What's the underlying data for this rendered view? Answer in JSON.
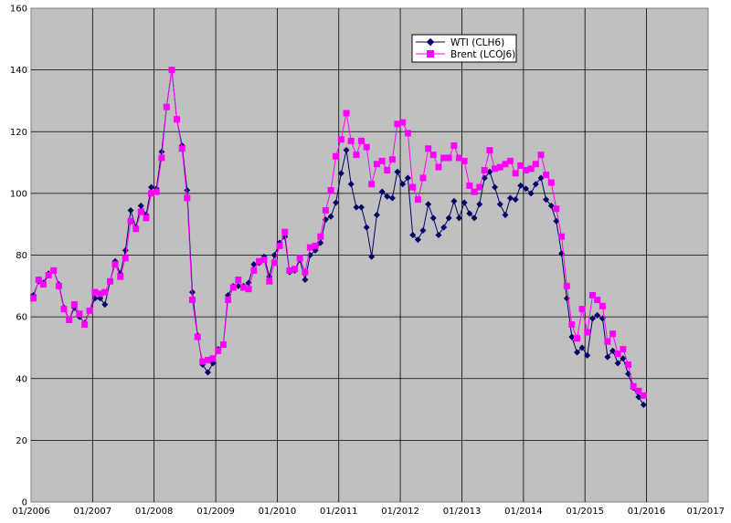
{
  "chart_data": {
    "type": "line",
    "title": "",
    "xlabel": "",
    "ylabel": "",
    "ylim": [
      0,
      160
    ],
    "y_ticks": [
      0,
      20,
      40,
      60,
      80,
      100,
      120,
      140,
      160
    ],
    "y_tick_labels": [
      "0",
      "20",
      "40",
      "60",
      "80",
      "100",
      "120",
      "140",
      "160"
    ],
    "x_range": [
      "2006-01-01",
      "2017-01-01"
    ],
    "x_ticks": [
      "2006-01-01",
      "2007-01-01",
      "2008-01-01",
      "2009-01-01",
      "2010-01-01",
      "2011-01-01",
      "2012-01-01",
      "2013-01-01",
      "2014-01-01",
      "2015-01-01",
      "2016-01-01",
      "2017-01-01"
    ],
    "x_tick_labels": [
      "01/2006",
      "01/2007",
      "01/2008",
      "01/2009",
      "01/2010",
      "01/2011",
      "01/2012",
      "01/2013",
      "01/2014",
      "01/2015",
      "01/2016",
      "01/2017"
    ],
    "grid": true,
    "legend_position": "top-center",
    "plot_background": "#c0c0c0",
    "series": [
      {
        "name": "WTI (CLH6)",
        "color": "#000066",
        "marker": "diamond",
        "points": [
          [
            "2006-01-15",
            67
          ],
          [
            "2006-02-15",
            71.5
          ],
          [
            "2006-03-15",
            71
          ],
          [
            "2006-04-15",
            74
          ],
          [
            "2006-05-15",
            75
          ],
          [
            "2006-06-15",
            70.5
          ],
          [
            "2006-07-15",
            63
          ],
          [
            "2006-08-15",
            59
          ],
          [
            "2006-09-15",
            63
          ],
          [
            "2006-10-15",
            60
          ],
          [
            "2006-11-15",
            58
          ],
          [
            "2006-12-15",
            62
          ],
          [
            "2007-01-15",
            66
          ],
          [
            "2007-02-15",
            66
          ],
          [
            "2007-03-15",
            64
          ],
          [
            "2007-04-15",
            71.5
          ],
          [
            "2007-05-15",
            78
          ],
          [
            "2007-06-15",
            74
          ],
          [
            "2007-07-15",
            81.5
          ],
          [
            "2007-08-15",
            94.5
          ],
          [
            "2007-09-15",
            89
          ],
          [
            "2007-10-15",
            96
          ],
          [
            "2007-11-15",
            93
          ],
          [
            "2007-12-15",
            102
          ],
          [
            "2008-01-15",
            101.5
          ],
          [
            "2008-02-15",
            113.5
          ],
          [
            "2008-03-15",
            128
          ],
          [
            "2008-04-15",
            140
          ],
          [
            "2008-05-15",
            124
          ],
          [
            "2008-06-15",
            115.5
          ],
          [
            "2008-07-15",
            101
          ],
          [
            "2008-08-15",
            68
          ],
          [
            "2008-09-15",
            54
          ],
          [
            "2008-10-15",
            44.5
          ],
          [
            "2008-11-15",
            42
          ],
          [
            "2008-12-15",
            45
          ],
          [
            "2009-01-15",
            49.5
          ],
          [
            "2009-02-15",
            51
          ],
          [
            "2009-03-15",
            67
          ],
          [
            "2009-04-15",
            70
          ],
          [
            "2009-05-15",
            70
          ],
          [
            "2009-06-15",
            70
          ],
          [
            "2009-07-15",
            71
          ],
          [
            "2009-08-15",
            77
          ],
          [
            "2009-09-15",
            77.5
          ],
          [
            "2009-10-15",
            79.5
          ],
          [
            "2009-11-15",
            73
          ],
          [
            "2009-12-15",
            80
          ],
          [
            "2010-01-15",
            84
          ],
          [
            "2010-02-15",
            86
          ],
          [
            "2010-03-15",
            74.5
          ],
          [
            "2010-04-15",
            75
          ],
          [
            "2010-05-15",
            78.5
          ],
          [
            "2010-06-15",
            72
          ],
          [
            "2010-07-15",
            80
          ],
          [
            "2010-08-15",
            81.5
          ],
          [
            "2010-09-15",
            84
          ],
          [
            "2010-10-15",
            91.5
          ],
          [
            "2010-11-15",
            92.5
          ],
          [
            "2010-12-15",
            97
          ],
          [
            "2011-01-15",
            106.5
          ],
          [
            "2011-02-15",
            114
          ],
          [
            "2011-03-15",
            103
          ],
          [
            "2011-04-15",
            95.5
          ],
          [
            "2011-05-15",
            95.5
          ],
          [
            "2011-06-15",
            89
          ],
          [
            "2011-07-15",
            79.5
          ],
          [
            "2011-08-15",
            93
          ],
          [
            "2011-09-15",
            100.5
          ],
          [
            "2011-10-15",
            99
          ],
          [
            "2011-11-15",
            98.5
          ],
          [
            "2011-12-15",
            107
          ],
          [
            "2012-01-15",
            103
          ],
          [
            "2012-02-15",
            105
          ],
          [
            "2012-03-15",
            86.5
          ],
          [
            "2012-04-15",
            85
          ],
          [
            "2012-05-15",
            88
          ],
          [
            "2012-06-15",
            96.5
          ],
          [
            "2012-07-15",
            92
          ],
          [
            "2012-08-15",
            86.5
          ],
          [
            "2012-09-15",
            89
          ],
          [
            "2012-10-15",
            92
          ],
          [
            "2012-11-15",
            97.5
          ],
          [
            "2012-12-15",
            92
          ],
          [
            "2013-01-15",
            97
          ],
          [
            "2013-02-15",
            93.5
          ],
          [
            "2013-03-15",
            92
          ],
          [
            "2013-04-15",
            96.5
          ],
          [
            "2013-05-15",
            105
          ],
          [
            "2013-06-15",
            107
          ],
          [
            "2013-07-15",
            102
          ],
          [
            "2013-08-15",
            96.5
          ],
          [
            "2013-09-15",
            93
          ],
          [
            "2013-10-15",
            98.5
          ],
          [
            "2013-11-15",
            98
          ],
          [
            "2013-12-15",
            102.5
          ],
          [
            "2014-01-15",
            101.5
          ],
          [
            "2014-02-15",
            100
          ],
          [
            "2014-03-15",
            103
          ],
          [
            "2014-04-15",
            105
          ],
          [
            "2014-05-15",
            98
          ],
          [
            "2014-06-15",
            96
          ],
          [
            "2014-07-15",
            91
          ],
          [
            "2014-08-15",
            80.5
          ],
          [
            "2014-09-15",
            66
          ],
          [
            "2014-10-15",
            53.5
          ],
          [
            "2014-11-15",
            48.5
          ],
          [
            "2014-12-15",
            50
          ],
          [
            "2015-01-15",
            47.5
          ],
          [
            "2015-02-15",
            59.5
          ],
          [
            "2015-03-15",
            60.5
          ],
          [
            "2015-04-15",
            59.5
          ],
          [
            "2015-05-15",
            47
          ],
          [
            "2015-06-15",
            49
          ],
          [
            "2015-07-15",
            45
          ],
          [
            "2015-08-15",
            46.5
          ],
          [
            "2015-09-15",
            41.5
          ],
          [
            "2015-10-15",
            37
          ],
          [
            "2015-11-15",
            34
          ],
          [
            "2015-12-15",
            31.5
          ]
        ]
      },
      {
        "name": "Brent (LCOJ6)",
        "color": "#ff00ff",
        "marker": "square",
        "points": [
          [
            "2006-01-15",
            66
          ],
          [
            "2006-02-15",
            72
          ],
          [
            "2006-03-15",
            70.5
          ],
          [
            "2006-04-15",
            73.5
          ],
          [
            "2006-05-15",
            75
          ],
          [
            "2006-06-15",
            70
          ],
          [
            "2006-07-15",
            62.5
          ],
          [
            "2006-08-15",
            59
          ],
          [
            "2006-09-15",
            64
          ],
          [
            "2006-10-15",
            61
          ],
          [
            "2006-11-15",
            57.5
          ],
          [
            "2006-12-15",
            62
          ],
          [
            "2007-01-15",
            68
          ],
          [
            "2007-02-15",
            67.5
          ],
          [
            "2007-03-15",
            68
          ],
          [
            "2007-04-15",
            71.5
          ],
          [
            "2007-05-15",
            77
          ],
          [
            "2007-06-15",
            73
          ],
          [
            "2007-07-15",
            79
          ],
          [
            "2007-08-15",
            91
          ],
          [
            "2007-09-15",
            88.5
          ],
          [
            "2007-10-15",
            94
          ],
          [
            "2007-11-15",
            92
          ],
          [
            "2007-12-15",
            100
          ],
          [
            "2008-01-15",
            100.5
          ],
          [
            "2008-02-15",
            111.5
          ],
          [
            "2008-03-15",
            128
          ],
          [
            "2008-04-15",
            140
          ],
          [
            "2008-05-15",
            124
          ],
          [
            "2008-06-15",
            114.5
          ],
          [
            "2008-07-15",
            98.5
          ],
          [
            "2008-08-15",
            65.5
          ],
          [
            "2008-09-15",
            53.5
          ],
          [
            "2008-10-15",
            45.5
          ],
          [
            "2008-11-15",
            46
          ],
          [
            "2008-12-15",
            46.5
          ],
          [
            "2009-01-15",
            49
          ],
          [
            "2009-02-15",
            51
          ],
          [
            "2009-03-15",
            65.5
          ],
          [
            "2009-04-15",
            69.5
          ],
          [
            "2009-05-15",
            72
          ],
          [
            "2009-06-15",
            69.5
          ],
          [
            "2009-07-15",
            69
          ],
          [
            "2009-08-15",
            75
          ],
          [
            "2009-09-15",
            78
          ],
          [
            "2009-10-15",
            78.5
          ],
          [
            "2009-11-15",
            71.5
          ],
          [
            "2009-12-15",
            77.5
          ],
          [
            "2010-01-15",
            83
          ],
          [
            "2010-02-15",
            87.5
          ],
          [
            "2010-03-15",
            75
          ],
          [
            "2010-04-15",
            75.5
          ],
          [
            "2010-05-15",
            79
          ],
          [
            "2010-06-15",
            74.5
          ],
          [
            "2010-07-15",
            82.5
          ],
          [
            "2010-08-15",
            83
          ],
          [
            "2010-09-15",
            86
          ],
          [
            "2010-10-15",
            94.5
          ],
          [
            "2010-11-15",
            101
          ],
          [
            "2010-12-15",
            112
          ],
          [
            "2011-01-15",
            117.5
          ],
          [
            "2011-02-15",
            126
          ],
          [
            "2011-03-15",
            117
          ],
          [
            "2011-04-15",
            112.5
          ],
          [
            "2011-05-15",
            117
          ],
          [
            "2011-06-15",
            115
          ],
          [
            "2011-07-15",
            103
          ],
          [
            "2011-08-15",
            109.5
          ],
          [
            "2011-09-15",
            110.5
          ],
          [
            "2011-10-15",
            107.5
          ],
          [
            "2011-11-15",
            111
          ],
          [
            "2011-12-15",
            122.5
          ],
          [
            "2012-01-15",
            123
          ],
          [
            "2012-02-15",
            119.5
          ],
          [
            "2012-03-15",
            102
          ],
          [
            "2012-04-15",
            98
          ],
          [
            "2012-05-15",
            105
          ],
          [
            "2012-06-15",
            114.5
          ],
          [
            "2012-07-15",
            112.5
          ],
          [
            "2012-08-15",
            108.5
          ],
          [
            "2012-09-15",
            111.5
          ],
          [
            "2012-10-15",
            111.5
          ],
          [
            "2012-11-15",
            115.5
          ],
          [
            "2012-12-15",
            111.5
          ],
          [
            "2013-01-15",
            110.5
          ],
          [
            "2013-02-15",
            102.5
          ],
          [
            "2013-03-15",
            100.5
          ],
          [
            "2013-04-15",
            102
          ],
          [
            "2013-05-15",
            107.5
          ],
          [
            "2013-06-15",
            114
          ],
          [
            "2013-07-15",
            108
          ],
          [
            "2013-08-15",
            108.5
          ],
          [
            "2013-09-15",
            109.5
          ],
          [
            "2013-10-15",
            110.5
          ],
          [
            "2013-11-15",
            106.5
          ],
          [
            "2013-12-15",
            109
          ],
          [
            "2014-01-15",
            107.5
          ],
          [
            "2014-02-15",
            108
          ],
          [
            "2014-03-15",
            109.5
          ],
          [
            "2014-04-15",
            112.5
          ],
          [
            "2014-05-15",
            106
          ],
          [
            "2014-06-15",
            103.5
          ],
          [
            "2014-07-15",
            95
          ],
          [
            "2014-08-15",
            86
          ],
          [
            "2014-09-15",
            70
          ],
          [
            "2014-10-15",
            57.5
          ],
          [
            "2014-11-15",
            53
          ],
          [
            "2014-12-15",
            62.5
          ],
          [
            "2015-01-15",
            55
          ],
          [
            "2015-02-15",
            67
          ],
          [
            "2015-03-15",
            65.5
          ],
          [
            "2015-04-15",
            63.5
          ],
          [
            "2015-05-15",
            52
          ],
          [
            "2015-06-15",
            54.5
          ],
          [
            "2015-07-15",
            48
          ],
          [
            "2015-08-15",
            49.5
          ],
          [
            "2015-09-15",
            44.5
          ],
          [
            "2015-10-15",
            37.5
          ],
          [
            "2015-11-15",
            36
          ],
          [
            "2015-12-15",
            34.5
          ]
        ]
      }
    ]
  }
}
